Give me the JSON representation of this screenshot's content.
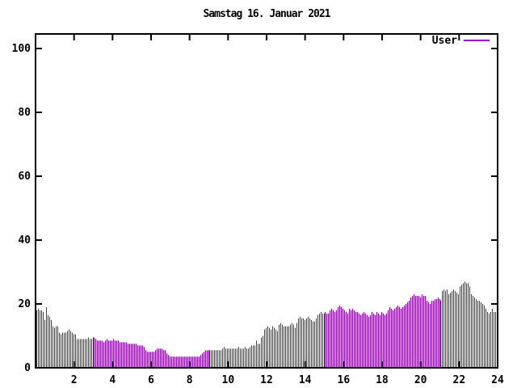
{
  "page": {
    "background": "#ffffff",
    "text_color": "#000000"
  },
  "chart_data": {
    "type": "bar",
    "title": "Samstag 16. Januar 2021",
    "xlabel": "",
    "ylabel": "",
    "x_unit": "hour of day",
    "x_interval_minutes": 5,
    "x_range": [
      0,
      24
    ],
    "y_range": [
      0,
      100
    ],
    "x_ticks": [
      2,
      4,
      6,
      8,
      10,
      12,
      14,
      16,
      18,
      20,
      22,
      24
    ],
    "y_ticks": [
      0,
      20,
      40,
      60,
      80,
      100
    ],
    "grid": false,
    "legend_position": "top-right-inside",
    "axis_color": "#000000",
    "series": [
      {
        "name": "User",
        "color": "#9400d3",
        "values": [
          18,
          18.5,
          18,
          18,
          17.5,
          15,
          19,
          16.5,
          16,
          15,
          13,
          12.5,
          13,
          13,
          11,
          10.5,
          11,
          11,
          11,
          11.5,
          12,
          11.5,
          11,
          10.5,
          10.5,
          9,
          9,
          9,
          9,
          9,
          9,
          9,
          9.5,
          9,
          9,
          9.5,
          9.5,
          9,
          8.5,
          8.5,
          8.5,
          8.5,
          8,
          8.5,
          9,
          8.5,
          8.5,
          8.5,
          9,
          8.5,
          8.5,
          8.5,
          8,
          8,
          8,
          8,
          8,
          7.5,
          7.5,
          7.5,
          7.5,
          7.5,
          7.5,
          7,
          7,
          7,
          7,
          6.5,
          5.5,
          5,
          5,
          5,
          5,
          5,
          5.5,
          6,
          6,
          6,
          6,
          5.5,
          5.5,
          4.5,
          4,
          3.5,
          3.5,
          3.5,
          3.5,
          3.5,
          3.5,
          3.5,
          3.5,
          3.5,
          3.5,
          3.5,
          3.5,
          3.5,
          3.5,
          3.5,
          3.5,
          3.5,
          3.5,
          3.5,
          4,
          4.5,
          5,
          5.5,
          5.5,
          5.5,
          5.5,
          5.5,
          5.5,
          5.5,
          5.5,
          5.5,
          5.5,
          5.5,
          6,
          6.5,
          6,
          6,
          6,
          6,
          6,
          6,
          6,
          6,
          6.5,
          6,
          6,
          6,
          6.5,
          6,
          6,
          6.5,
          7,
          7,
          7,
          8.5,
          7.5,
          7.5,
          9.5,
          10,
          12,
          12.5,
          13,
          12.5,
          12,
          13,
          12.5,
          12,
          11.5,
          13.5,
          14,
          13.5,
          13,
          13,
          13,
          13,
          13.5,
          14,
          13.5,
          12.5,
          14,
          15.5,
          16,
          15.5,
          15.5,
          15,
          15.5,
          16,
          15.5,
          15,
          14.5,
          14.5,
          15.5,
          16.5,
          17,
          17.5,
          17,
          17,
          17.5,
          17,
          17,
          18,
          18.5,
          18,
          17.5,
          18,
          19,
          19.5,
          19,
          18.5,
          18,
          17.5,
          17,
          18.5,
          18,
          18.5,
          18,
          17.5,
          17.5,
          17,
          16.5,
          17,
          17.5,
          17,
          16.5,
          16,
          16.5,
          17.5,
          17,
          16.5,
          17.5,
          17,
          16.5,
          17.5,
          17,
          16.5,
          17,
          18,
          19,
          18.5,
          18,
          18.5,
          19,
          19.5,
          19,
          18.5,
          19,
          19.5,
          20,
          20.5,
          21,
          22,
          22.5,
          23,
          22.5,
          22.5,
          22.5,
          22,
          23,
          22.5,
          22.5,
          21,
          20.5,
          20,
          21,
          21,
          21.5,
          21.5,
          22,
          21.5,
          21,
          24,
          24.5,
          24,
          24.5,
          23,
          23.5,
          24,
          24.5,
          24,
          23.5,
          23,
          25.5,
          26,
          26.5,
          27,
          26.5,
          26.5,
          25.5,
          23,
          22.5,
          22,
          21.5,
          21,
          21,
          20.5,
          20,
          19.5,
          18.5,
          17.5,
          17,
          17.5,
          18.5,
          17.5,
          17.5,
          14.5
        ]
      }
    ]
  }
}
